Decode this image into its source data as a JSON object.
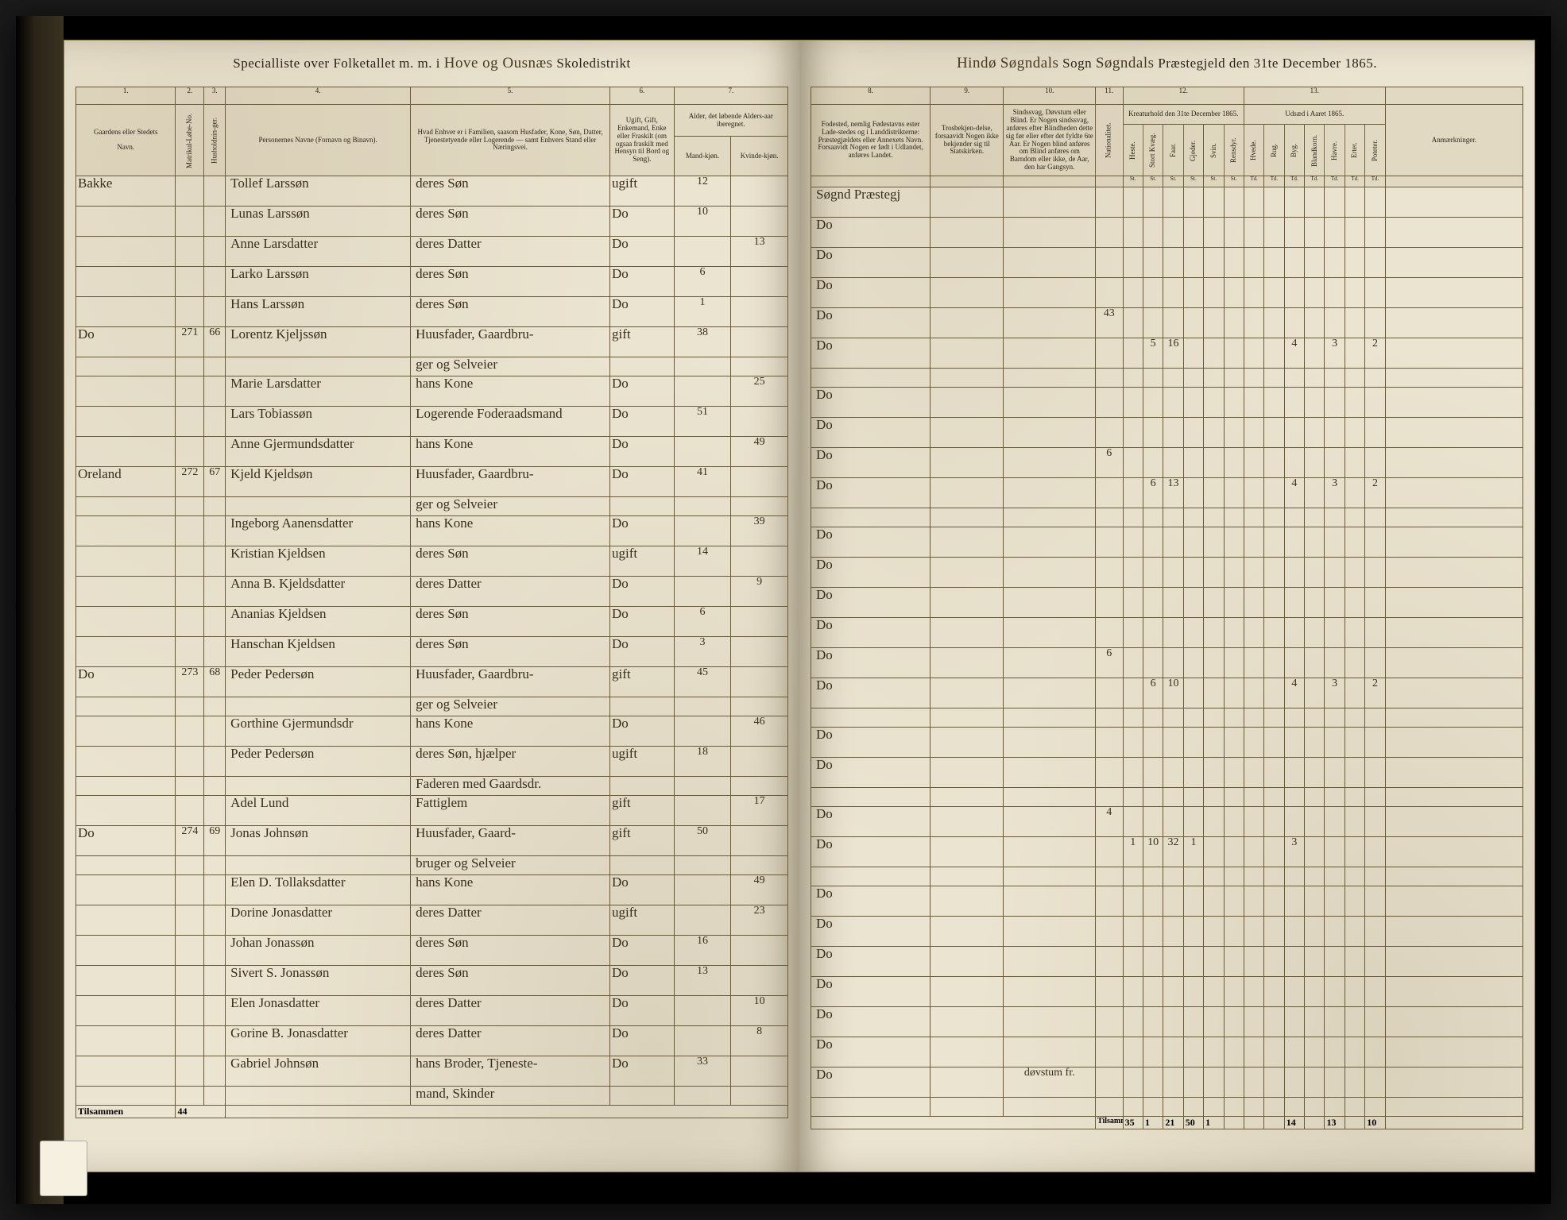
{
  "title": {
    "left_prefix": "Specialliste over Folketallet m. m. i",
    "left_script": "Hove og Ousnæs",
    "left_suffix": "Skoledistrikt",
    "right_prefix": "Hindø",
    "right_script1": "Søgndals",
    "right_mid": "Sogn",
    "right_script2": "Søgndals",
    "right_suffix": "Præstegjeld den 31te December 1865."
  },
  "left_columns": {
    "nums": [
      "1.",
      "2.",
      "3.",
      "4.",
      "5.",
      "6.",
      "7."
    ],
    "labels": {
      "c1a": "Gaardens eller Stedets",
      "c1b": "Navn.",
      "c2": "Matrikul-Løbe-No.",
      "c3": "Husholdnin-ger.",
      "c4": "Personernes Navne (Fornavn og Binavn).",
      "c5": "Hvad Enhver er i Familien, saasom Husfader, Kone, Søn, Datter, Tjenestetyende eller Logerende — samt Enhvers Stand eller Næringsvei.",
      "c6": "Ugift, Gift, Enkemand, Enke eller Fraskilt (om ogsaa fraskilt med Hensyn til Bord og Seng).",
      "c7": "Alder, det løbende Alders-aar iberegnet.",
      "c7a": "Mand-kjøn.",
      "c7b": "Kvinde-kjøn."
    }
  },
  "right_columns": {
    "nums": [
      "8.",
      "9.",
      "10.",
      "11.",
      "12.",
      "13."
    ],
    "labels": {
      "c8": "Fodested, nemlig Fødestavns ester Lade-stedes og i Landdistrikterne: Præstegjældets eller Annexets Navn. Forsaavidt Nogen er født i Udlandet, anføres Landet.",
      "c9": "Trosbekjen-delse, forsaavidt Nogen ikke bekjender sig til Statskirken.",
      "c10": "Sindssvag, Døvstum eller Blind. Er Nogen sindssvag, anføres efter Blindheden dette sig før eller efter det fyldte 6te Aar. Er Nogen blind anføres om Blind anføres om Barndom eller ikke, de Aar, den har Gangsyn.",
      "c11": "Nationalitet.",
      "c12_title": "Kreaturhold den 31te December 1865.",
      "c12_subs": [
        "Heste.",
        "Stort Kvæg.",
        "Faar.",
        "Gjeder.",
        "Svin.",
        "Rensdyr."
      ],
      "c13_title": "Udsæd i Aaret 1865.",
      "c13_subs": [
        "Hvede.",
        "Rug.",
        "Byg.",
        "Blandkorn.",
        "Havre.",
        "Erter.",
        "Poteter."
      ],
      "anm": "Anmærkninger."
    },
    "sub_nums": [
      "St.",
      "St.",
      "St.",
      "St.",
      "St.",
      "St.",
      "Td.",
      "Td.",
      "Td.",
      "Td.",
      "Td.",
      "Td.",
      "Td."
    ]
  },
  "rows": [
    {
      "gaard": "Bakke",
      "mat": "",
      "hh": "",
      "name": "Tollef Larssøn",
      "fam": "deres Søn",
      "stat": "ugift",
      "m": "12",
      "k": "",
      "fode": "Søgnd Præstegj",
      "rest": {}
    },
    {
      "gaard": "",
      "mat": "",
      "hh": "",
      "name": "Lunas Larssøn",
      "fam": "deres Søn",
      "stat": "Do",
      "m": "10",
      "k": "",
      "fode": "Do",
      "rest": {}
    },
    {
      "gaard": "",
      "mat": "",
      "hh": "",
      "name": "Anne Larsdatter",
      "fam": "deres Datter",
      "stat": "Do",
      "m": "",
      "k": "13",
      "fode": "Do",
      "rest": {}
    },
    {
      "gaard": "",
      "mat": "",
      "hh": "",
      "name": "Larko Larssøn",
      "fam": "deres Søn",
      "stat": "Do",
      "m": "6",
      "k": "",
      "fode": "Do",
      "rest": {}
    },
    {
      "gaard": "",
      "mat": "",
      "hh": "",
      "name": "Hans Larssøn",
      "fam": "deres Søn",
      "stat": "Do",
      "m": "1",
      "k": "",
      "fode": "Do",
      "rest": {
        "c12": [
          "",
          "",
          "",
          "",
          "",
          ""
        ],
        "c13": [
          "",
          "",
          "",
          "",
          "",
          "",
          ""
        ],
        "pre": "43"
      }
    },
    {
      "gaard": "Do",
      "mat": "271",
      "hh": "66",
      "name": "Lorentz Kjeljssøn",
      "fam": "Huusfader, Gaardbru-",
      "stat": "gift",
      "m": "38",
      "k": "",
      "fode": "Do",
      "rest": {
        "c12": [
          "",
          "5",
          "16",
          "",
          "",
          ""
        ],
        "c13": [
          "",
          "",
          "4",
          "",
          "3",
          "",
          "2"
        ]
      }
    },
    {
      "cont": true,
      "gaard": "",
      "mat": "",
      "hh": "",
      "name": "",
      "fam": "ger og Selveier",
      "stat": "",
      "m": "",
      "k": "",
      "fode": "",
      "rest": {}
    },
    {
      "gaard": "",
      "mat": "",
      "hh": "",
      "name": "Marie Larsdatter",
      "fam": "hans Kone",
      "stat": "Do",
      "m": "",
      "k": "25",
      "fode": "Do",
      "rest": {}
    },
    {
      "gaard": "",
      "mat": "",
      "hh": "",
      "name": "Lars Tobiassøn",
      "fam": "Logerende Foderaadsmand",
      "stat": "Do",
      "m": "51",
      "k": "",
      "fode": "Do",
      "rest": {}
    },
    {
      "gaard": "",
      "mat": "",
      "hh": "",
      "name": "Anne Gjermundsdatter",
      "fam": "hans Kone",
      "stat": "Do",
      "m": "",
      "k": "49",
      "fode": "Do",
      "rest": {
        "pre": "6"
      }
    },
    {
      "gaard": "Oreland",
      "mat": "272",
      "hh": "67",
      "name": "Kjeld Kjeldsøn",
      "fam": "Huusfader, Gaardbru-",
      "stat": "Do",
      "m": "41",
      "k": "",
      "fode": "Do",
      "rest": {
        "c12": [
          "",
          "6",
          "13",
          "",
          "",
          ""
        ],
        "c13": [
          "",
          "",
          "4",
          "",
          "3",
          "",
          "2"
        ]
      }
    },
    {
      "cont": true,
      "gaard": "",
      "mat": "",
      "hh": "",
      "name": "",
      "fam": "ger og Selveier",
      "stat": "",
      "m": "",
      "k": "",
      "fode": "",
      "rest": {}
    },
    {
      "gaard": "",
      "mat": "",
      "hh": "",
      "name": "Ingeborg Aanensdatter",
      "fam": "hans Kone",
      "stat": "Do",
      "m": "",
      "k": "39",
      "fode": "Do",
      "rest": {}
    },
    {
      "gaard": "",
      "mat": "",
      "hh": "",
      "name": "Kristian Kjeldsen",
      "fam": "deres Søn",
      "stat": "ugift",
      "m": "14",
      "k": "",
      "fode": "Do",
      "rest": {}
    },
    {
      "gaard": "",
      "mat": "",
      "hh": "",
      "name": "Anna B. Kjeldsdatter",
      "fam": "deres Datter",
      "stat": "Do",
      "m": "",
      "k": "9",
      "fode": "Do",
      "rest": {}
    },
    {
      "gaard": "",
      "mat": "",
      "hh": "",
      "name": "Ananias Kjeldsen",
      "fam": "deres Søn",
      "stat": "Do",
      "m": "6",
      "k": "",
      "fode": "Do",
      "rest": {}
    },
    {
      "gaard": "",
      "mat": "",
      "hh": "",
      "name": "Hanschan Kjeldsen",
      "fam": "deres Søn",
      "stat": "Do",
      "m": "3",
      "k": "",
      "fode": "Do",
      "rest": {
        "pre": "6"
      }
    },
    {
      "gaard": "Do",
      "mat": "273",
      "hh": "68",
      "name": "Peder Pedersøn",
      "fam": "Huusfader, Gaardbru-",
      "stat": "gift",
      "m": "45",
      "k": "",
      "fode": "Do",
      "rest": {
        "c12": [
          "",
          "6",
          "10",
          "",
          "",
          ""
        ],
        "c13": [
          "",
          "",
          "4",
          "",
          "3",
          "",
          "2"
        ]
      }
    },
    {
      "cont": true,
      "gaard": "",
      "mat": "",
      "hh": "",
      "name": "",
      "fam": "ger og Selveier",
      "stat": "",
      "m": "",
      "k": "",
      "fode": "",
      "rest": {}
    },
    {
      "gaard": "",
      "mat": "",
      "hh": "",
      "name": "Gorthine Gjermundsdr",
      "fam": "hans Kone",
      "stat": "Do",
      "m": "",
      "k": "46",
      "fode": "Do",
      "rest": {}
    },
    {
      "gaard": "",
      "mat": "",
      "hh": "",
      "name": "Peder Pedersøn",
      "fam": "deres Søn, hjælper",
      "stat": "ugift",
      "m": "18",
      "k": "",
      "fode": "Do",
      "rest": {}
    },
    {
      "cont": true,
      "gaard": "",
      "mat": "",
      "hh": "",
      "name": "",
      "fam": "Faderen med Gaardsdr.",
      "stat": "",
      "m": "",
      "k": "",
      "fode": "",
      "rest": {}
    },
    {
      "gaard": "",
      "mat": "",
      "hh": "",
      "name": "Adel Lund",
      "fam": "Fattiglem",
      "stat": "gift",
      "m": "",
      "k": "17",
      "fode": "Do",
      "rest": {
        "pre": "4"
      }
    },
    {
      "gaard": "Do",
      "mat": "274",
      "hh": "69",
      "name": "Jonas Johnsøn",
      "fam": "Huusfader, Gaard-",
      "stat": "gift",
      "m": "50",
      "k": "",
      "fode": "Do",
      "rest": {
        "c12": [
          "1",
          "10",
          "32",
          "1",
          "",
          ""
        ],
        "c13": [
          "",
          "",
          "3",
          "",
          "",
          "",
          ""
        ]
      }
    },
    {
      "cont": true,
      "gaard": "",
      "mat": "",
      "hh": "",
      "name": "",
      "fam": "bruger og Selveier",
      "stat": "",
      "m": "",
      "k": "",
      "fode": "",
      "rest": {}
    },
    {
      "gaard": "",
      "mat": "",
      "hh": "",
      "name": "Elen D. Tollaksdatter",
      "fam": "hans Kone",
      "stat": "Do",
      "m": "",
      "k": "49",
      "fode": "Do",
      "rest": {}
    },
    {
      "gaard": "",
      "mat": "",
      "hh": "",
      "name": "Dorine Jonasdatter",
      "fam": "deres Datter",
      "stat": "ugift",
      "m": "",
      "k": "23",
      "fode": "Do",
      "rest": {}
    },
    {
      "gaard": "",
      "mat": "",
      "hh": "",
      "name": "Johan Jonassøn",
      "fam": "deres Søn",
      "stat": "Do",
      "m": "16",
      "k": "",
      "fode": "Do",
      "rest": {}
    },
    {
      "gaard": "",
      "mat": "",
      "hh": "",
      "name": "Sivert S. Jonassøn",
      "fam": "deres Søn",
      "stat": "Do",
      "m": "13",
      "k": "",
      "fode": "Do",
      "rest": {}
    },
    {
      "gaard": "",
      "mat": "",
      "hh": "",
      "name": "Elen Jonasdatter",
      "fam": "deres Datter",
      "stat": "Do",
      "m": "",
      "k": "10",
      "fode": "Do",
      "rest": {}
    },
    {
      "gaard": "",
      "mat": "",
      "hh": "",
      "name": "Gorine B. Jonasdatter",
      "fam": "deres Datter",
      "stat": "Do",
      "m": "",
      "k": "8",
      "fode": "Do",
      "rest": {}
    },
    {
      "gaard": "",
      "mat": "",
      "hh": "",
      "name": "Gabriel Johnsøn",
      "fam": "hans Broder, Tjeneste-",
      "stat": "Do",
      "m": "33",
      "k": "",
      "fode": "Do",
      "rest": {
        "note": "døvstum fr."
      }
    },
    {
      "cont": true,
      "gaard": "",
      "mat": "",
      "hh": "",
      "name": "",
      "fam": "mand, Skinder",
      "stat": "",
      "m": "",
      "k": "",
      "fode": "",
      "rest": {}
    }
  ],
  "footer": {
    "left_label": "Tilsammen",
    "left_val": "44",
    "right_label": "Tilsammen",
    "c12": [
      "35",
      "1",
      "21",
      "50",
      "1",
      ""
    ],
    "c13": [
      "",
      "",
      "14",
      "",
      "13",
      "",
      "10"
    ]
  }
}
